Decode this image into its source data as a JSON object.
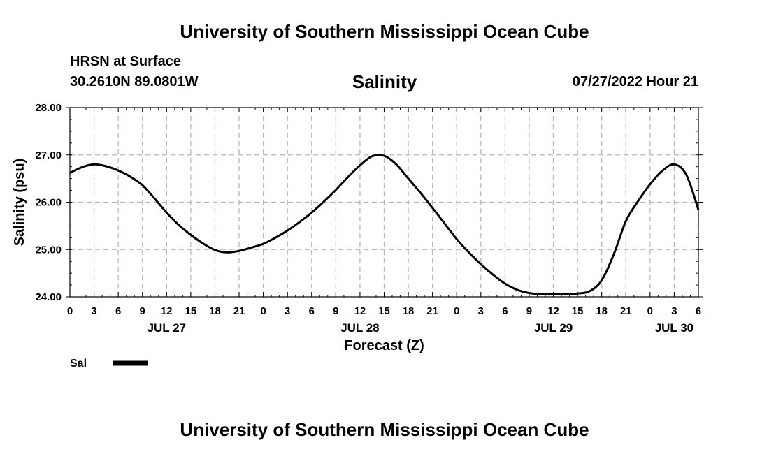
{
  "page": {
    "title_top": "University of Southern Mississippi Ocean Cube",
    "title_bottom": "University of Southern Mississippi Ocean Cube",
    "station": "HRSN at Surface",
    "coords": "30.2610N  89.0801W",
    "chart_title": "Salinity",
    "datetime": "07/27/2022 Hour 21",
    "legend_label": "Sal"
  },
  "chart_data": {
    "type": "line",
    "title": "Salinity",
    "xlabel": "Forecast (Z)",
    "ylabel": "Salinity (psu)",
    "ylim": [
      24,
      28
    ],
    "xlim": [
      0,
      78
    ],
    "yticks": [
      24,
      25,
      26,
      27,
      28
    ],
    "ytick_labels": [
      "24.00",
      "25.00",
      "26.00",
      "27.00",
      "28.00"
    ],
    "xtick_hours": [
      0,
      3,
      6,
      9,
      12,
      15,
      18,
      21,
      24,
      27,
      30,
      33,
      36,
      39,
      42,
      45,
      48,
      51,
      54,
      57,
      60,
      63,
      66,
      69,
      72,
      75,
      78
    ],
    "xtick_labels": [
      "0",
      "3",
      "6",
      "9",
      "12",
      "15",
      "18",
      "21",
      "0",
      "3",
      "6",
      "9",
      "12",
      "15",
      "18",
      "21",
      "0",
      "3",
      "6",
      "9",
      "12",
      "15",
      "18",
      "21",
      "0",
      "3",
      "6"
    ],
    "date_labels": [
      {
        "hour": 12,
        "label": "JUL 27"
      },
      {
        "hour": 36,
        "label": "JUL 28"
      },
      {
        "hour": 60,
        "label": "JUL 29"
      },
      {
        "hour": 75,
        "label": "JUL 30"
      }
    ],
    "grid": true,
    "legend": "bottom-left",
    "series": [
      {
        "name": "Sal",
        "x": [
          0,
          1.5,
          3,
          4.5,
          6,
          7.5,
          9,
          10.5,
          12,
          13.5,
          15,
          16.5,
          18,
          19.5,
          21,
          22.5,
          24,
          25.5,
          27,
          28.5,
          30,
          31.5,
          33,
          34.5,
          36,
          37.5,
          39,
          40.5,
          42,
          43.5,
          45,
          46.5,
          48,
          49.5,
          51,
          52.5,
          54,
          55.5,
          57,
          58.5,
          60,
          61.5,
          63,
          64.5,
          66,
          67.5,
          69,
          70.5,
          72,
          73.5,
          75,
          76.5,
          78
        ],
        "y": [
          26.62,
          26.74,
          26.8,
          26.76,
          26.67,
          26.54,
          26.36,
          26.08,
          25.78,
          25.52,
          25.31,
          25.13,
          24.99,
          24.94,
          24.97,
          25.04,
          25.12,
          25.25,
          25.4,
          25.58,
          25.78,
          26.01,
          26.26,
          26.53,
          26.78,
          26.97,
          26.98,
          26.8,
          26.5,
          26.2,
          25.88,
          25.55,
          25.22,
          24.94,
          24.69,
          24.47,
          24.28,
          24.15,
          24.08,
          24.06,
          24.06,
          24.06,
          24.07,
          24.12,
          24.35,
          24.9,
          25.6,
          26.02,
          26.38,
          26.66,
          26.8,
          26.58,
          25.84
        ]
      }
    ]
  }
}
